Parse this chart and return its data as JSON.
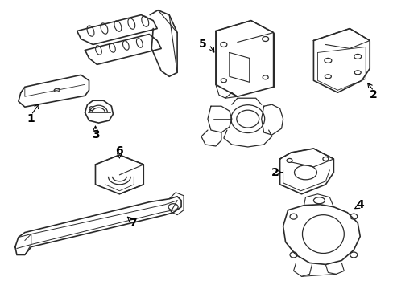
{
  "background_color": "#ffffff",
  "line_color": "#2a2a2a",
  "label_fontsize": 10,
  "lw": 0.9
}
